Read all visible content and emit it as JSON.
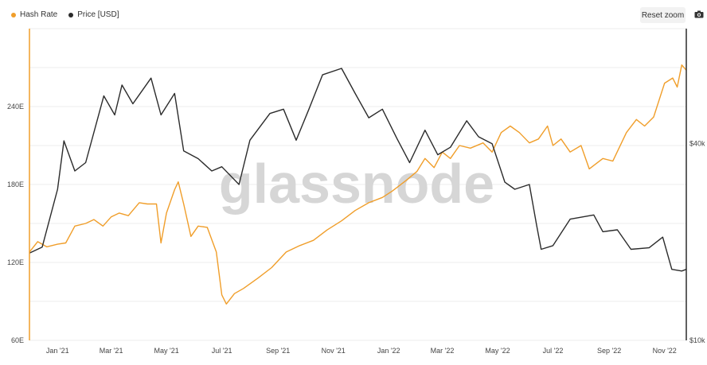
{
  "legend": {
    "hash_rate": "Hash Rate",
    "price": "Price [USD]"
  },
  "toolbar": {
    "reset_zoom": "Reset zoom"
  },
  "watermark": "glassnode",
  "colors": {
    "hash_rate": "#f09e2a",
    "price": "#2b2b2b",
    "grid": "#ededed"
  },
  "chart_data": {
    "type": "line",
    "x_axis": {
      "range": [
        "2020-12-01",
        "2022-11-25"
      ],
      "tick_labels": [
        "Jan '21",
        "Mar '21",
        "May '21",
        "Jul '21",
        "Sep '21",
        "Nov '21",
        "Jan '22",
        "Mar '22",
        "May '22",
        "Jul '22",
        "Sep '22",
        "Nov '22"
      ]
    },
    "y_left": {
      "label": "",
      "unit": "E",
      "range": [
        60,
        300
      ],
      "tick_labels": [
        "60E",
        "120E",
        "180E",
        "240E"
      ]
    },
    "y_right": {
      "label": "",
      "scale": "log",
      "range": [
        10000,
        90000
      ],
      "tick_labels": [
        "$10k",
        "$40k"
      ]
    },
    "grid": true,
    "legend_position": "top-left",
    "series": [
      {
        "name": "Hash Rate",
        "axis": "left",
        "unit": "EH/s",
        "points": [
          [
            "2020-12-01",
            128
          ],
          [
            "2020-12-10",
            136
          ],
          [
            "2020-12-20",
            132
          ],
          [
            "2021-01-01",
            134
          ],
          [
            "2021-01-10",
            135
          ],
          [
            "2021-01-20",
            148
          ],
          [
            "2021-02-01",
            150
          ],
          [
            "2021-02-10",
            153
          ],
          [
            "2021-02-20",
            148
          ],
          [
            "2021-03-01",
            155
          ],
          [
            "2021-03-10",
            158
          ],
          [
            "2021-03-20",
            156
          ],
          [
            "2021-04-01",
            166
          ],
          [
            "2021-04-10",
            165
          ],
          [
            "2021-04-20",
            165
          ],
          [
            "2021-04-25",
            135
          ],
          [
            "2021-05-01",
            158
          ],
          [
            "2021-05-10",
            176
          ],
          [
            "2021-05-14",
            182
          ],
          [
            "2021-05-20",
            165
          ],
          [
            "2021-05-28",
            140
          ],
          [
            "2021-06-05",
            148
          ],
          [
            "2021-06-15",
            147
          ],
          [
            "2021-06-25",
            128
          ],
          [
            "2021-07-01",
            95
          ],
          [
            "2021-07-06",
            88
          ],
          [
            "2021-07-15",
            96
          ],
          [
            "2021-07-25",
            100
          ],
          [
            "2021-08-10",
            108
          ],
          [
            "2021-08-25",
            116
          ],
          [
            "2021-09-10",
            128
          ],
          [
            "2021-09-25",
            133
          ],
          [
            "2021-10-10",
            137
          ],
          [
            "2021-10-25",
            145
          ],
          [
            "2021-11-10",
            152
          ],
          [
            "2021-11-25",
            160
          ],
          [
            "2021-12-10",
            166
          ],
          [
            "2021-12-25",
            170
          ],
          [
            "2022-01-05",
            175
          ],
          [
            "2022-01-20",
            183
          ],
          [
            "2022-02-01",
            190
          ],
          [
            "2022-02-10",
            200
          ],
          [
            "2022-02-20",
            193
          ],
          [
            "2022-03-01",
            205
          ],
          [
            "2022-03-10",
            200
          ],
          [
            "2022-03-20",
            210
          ],
          [
            "2022-04-01",
            208
          ],
          [
            "2022-04-15",
            212
          ],
          [
            "2022-04-25",
            205
          ],
          [
            "2022-05-05",
            220
          ],
          [
            "2022-05-15",
            225
          ],
          [
            "2022-05-25",
            220
          ],
          [
            "2022-06-05",
            212
          ],
          [
            "2022-06-15",
            215
          ],
          [
            "2022-06-25",
            225
          ],
          [
            "2022-07-01",
            210
          ],
          [
            "2022-07-10",
            215
          ],
          [
            "2022-07-20",
            205
          ],
          [
            "2022-08-01",
            210
          ],
          [
            "2022-08-10",
            192
          ],
          [
            "2022-08-25",
            200
          ],
          [
            "2022-09-05",
            198
          ],
          [
            "2022-09-20",
            220
          ],
          [
            "2022-10-01",
            230
          ],
          [
            "2022-10-10",
            225
          ],
          [
            "2022-10-20",
            232
          ],
          [
            "2022-11-01",
            258
          ],
          [
            "2022-11-10",
            262
          ],
          [
            "2022-11-15",
            255
          ],
          [
            "2022-11-20",
            272
          ],
          [
            "2022-11-25",
            268
          ]
        ]
      },
      {
        "name": "Price [USD]",
        "axis": "right",
        "unit": "USD",
        "points": [
          [
            "2020-12-01",
            18500
          ],
          [
            "2020-12-15",
            19300
          ],
          [
            "2021-01-01",
            29000
          ],
          [
            "2021-01-08",
            40800
          ],
          [
            "2021-01-20",
            33000
          ],
          [
            "2021-02-01",
            35000
          ],
          [
            "2021-02-21",
            56000
          ],
          [
            "2021-03-05",
            49000
          ],
          [
            "2021-03-13",
            60500
          ],
          [
            "2021-03-25",
            53000
          ],
          [
            "2021-04-14",
            63500
          ],
          [
            "2021-04-25",
            49000
          ],
          [
            "2021-05-10",
            57000
          ],
          [
            "2021-05-20",
            38000
          ],
          [
            "2021-06-05",
            36000
          ],
          [
            "2021-06-20",
            33000
          ],
          [
            "2021-07-01",
            34000
          ],
          [
            "2021-07-20",
            30000
          ],
          [
            "2021-08-01",
            41000
          ],
          [
            "2021-08-23",
            49500
          ],
          [
            "2021-09-07",
            51000
          ],
          [
            "2021-09-21",
            41000
          ],
          [
            "2021-10-05",
            51000
          ],
          [
            "2021-10-20",
            65000
          ],
          [
            "2021-11-10",
            68000
          ],
          [
            "2021-11-25",
            57000
          ],
          [
            "2021-12-10",
            48000
          ],
          [
            "2021-12-25",
            51000
          ],
          [
            "2022-01-10",
            41500
          ],
          [
            "2022-01-24",
            35000
          ],
          [
            "2022-02-10",
            44000
          ],
          [
            "2022-02-24",
            37000
          ],
          [
            "2022-03-10",
            39000
          ],
          [
            "2022-03-28",
            47000
          ],
          [
            "2022-04-10",
            42000
          ],
          [
            "2022-04-25",
            40000
          ],
          [
            "2022-05-09",
            30500
          ],
          [
            "2022-05-20",
            29000
          ],
          [
            "2022-06-05",
            30000
          ],
          [
            "2022-06-13",
            22500
          ],
          [
            "2022-06-18",
            19000
          ],
          [
            "2022-07-01",
            19500
          ],
          [
            "2022-07-20",
            23500
          ],
          [
            "2022-08-15",
            24200
          ],
          [
            "2022-08-25",
            21500
          ],
          [
            "2022-09-10",
            21800
          ],
          [
            "2022-09-25",
            19000
          ],
          [
            "2022-10-15",
            19200
          ],
          [
            "2022-10-30",
            20700
          ],
          [
            "2022-11-09",
            16500
          ],
          [
            "2022-11-20",
            16300
          ],
          [
            "2022-11-25",
            16500
          ]
        ]
      }
    ]
  }
}
